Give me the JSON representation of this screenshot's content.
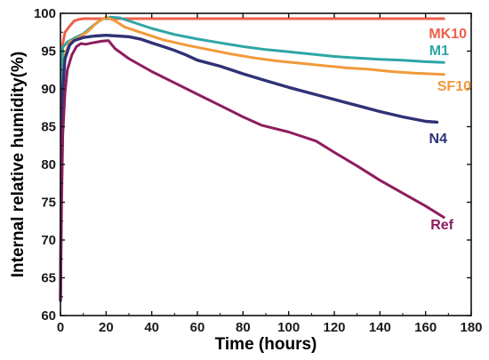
{
  "chart_data": {
    "type": "line",
    "xlabel": "Time (hours)",
    "ylabel": "Internal relative humidity(%)",
    "xlim": [
      0,
      180
    ],
    "ylim": [
      60,
      100
    ],
    "xticks": [
      0,
      20,
      40,
      60,
      80,
      100,
      120,
      140,
      160,
      180
    ],
    "yticks": [
      60,
      65,
      70,
      75,
      80,
      85,
      90,
      95,
      100
    ],
    "grid": false,
    "legend": "inline labels at right end of each series",
    "series": [
      {
        "name": "MK10",
        "color": "#ee5f4b",
        "points": [
          [
            0,
            62
          ],
          [
            0.5,
            85
          ],
          [
            1,
            96
          ],
          [
            2,
            97.5
          ],
          [
            4,
            98.3
          ],
          [
            6,
            99.0
          ],
          [
            8,
            99.2
          ],
          [
            10,
            99.3
          ],
          [
            20,
            99.3
          ],
          [
            60,
            99.3
          ],
          [
            100,
            99.3
          ],
          [
            140,
            99.3
          ],
          [
            168,
            99.3
          ]
        ]
      },
      {
        "name": "M1",
        "color": "#2ea6a5",
        "points": [
          [
            0,
            62
          ],
          [
            0.5,
            88
          ],
          [
            1,
            95.5
          ],
          [
            3,
            96.2
          ],
          [
            6,
            96.7
          ],
          [
            10,
            97.3
          ],
          [
            14,
            98.3
          ],
          [
            18,
            99.2
          ],
          [
            22,
            99.5
          ],
          [
            26,
            99.4
          ],
          [
            30,
            99.0
          ],
          [
            40,
            98.0
          ],
          [
            50,
            97.2
          ],
          [
            60,
            96.6
          ],
          [
            70,
            96.1
          ],
          [
            80,
            95.6
          ],
          [
            90,
            95.2
          ],
          [
            100,
            94.9
          ],
          [
            110,
            94.6
          ],
          [
            120,
            94.3
          ],
          [
            130,
            94.1
          ],
          [
            140,
            93.9
          ],
          [
            150,
            93.8
          ],
          [
            160,
            93.6
          ],
          [
            168,
            93.5
          ]
        ]
      },
      {
        "name": "SF10",
        "color": "#f2993a",
        "points": [
          [
            0,
            62
          ],
          [
            0.5,
            80
          ],
          [
            1,
            90
          ],
          [
            2,
            94.5
          ],
          [
            4,
            96.2
          ],
          [
            8,
            96.8
          ],
          [
            12,
            97.6
          ],
          [
            16,
            98.8
          ],
          [
            20,
            99.5
          ],
          [
            24,
            99.0
          ],
          [
            28,
            98.2
          ],
          [
            35,
            97.5
          ],
          [
            45,
            96.5
          ],
          [
            55,
            95.8
          ],
          [
            65,
            95.2
          ],
          [
            75,
            94.6
          ],
          [
            85,
            94.1
          ],
          [
            95,
            93.7
          ],
          [
            105,
            93.4
          ],
          [
            115,
            93.1
          ],
          [
            125,
            92.8
          ],
          [
            135,
            92.6
          ],
          [
            145,
            92.3
          ],
          [
            155,
            92.1
          ],
          [
            168,
            91.9
          ]
        ]
      },
      {
        "name": "N4",
        "color": "#2f3276",
        "points": [
          [
            0,
            62
          ],
          [
            0.5,
            82
          ],
          [
            1,
            90
          ],
          [
            2,
            94
          ],
          [
            4,
            95.8
          ],
          [
            6,
            96.4
          ],
          [
            10,
            96.8
          ],
          [
            15,
            97.0
          ],
          [
            20,
            97.1
          ],
          [
            25,
            97.0
          ],
          [
            30,
            96.9
          ],
          [
            35,
            96.6
          ],
          [
            40,
            96.1
          ],
          [
            45,
            95.6
          ],
          [
            50,
            95.1
          ],
          [
            55,
            94.5
          ],
          [
            60,
            93.8
          ],
          [
            70,
            93.0
          ],
          [
            80,
            92.0
          ],
          [
            90,
            91.1
          ],
          [
            100,
            90.2
          ],
          [
            110,
            89.4
          ],
          [
            120,
            88.6
          ],
          [
            130,
            87.8
          ],
          [
            140,
            87.0
          ],
          [
            150,
            86.3
          ],
          [
            160,
            85.7
          ],
          [
            165,
            85.6
          ]
        ]
      },
      {
        "name": "Ref",
        "color": "#8e1c5e",
        "points": [
          [
            0,
            62
          ],
          [
            0.5,
            75
          ],
          [
            1,
            84
          ],
          [
            2,
            89.5
          ],
          [
            3,
            92.5
          ],
          [
            5,
            94.5
          ],
          [
            7,
            95.6
          ],
          [
            9,
            96.0
          ],
          [
            11,
            95.9
          ],
          [
            14,
            96.1
          ],
          [
            18,
            96.3
          ],
          [
            21,
            96.4
          ],
          [
            24,
            95.3
          ],
          [
            30,
            94.0
          ],
          [
            40,
            92.3
          ],
          [
            50,
            90.8
          ],
          [
            60,
            89.3
          ],
          [
            70,
            87.8
          ],
          [
            80,
            86.3
          ],
          [
            88,
            85.2
          ],
          [
            100,
            84.3
          ],
          [
            112,
            83.1
          ],
          [
            120,
            81.6
          ],
          [
            130,
            79.8
          ],
          [
            140,
            77.9
          ],
          [
            150,
            76.2
          ],
          [
            160,
            74.5
          ],
          [
            168,
            73.0
          ]
        ]
      }
    ]
  }
}
